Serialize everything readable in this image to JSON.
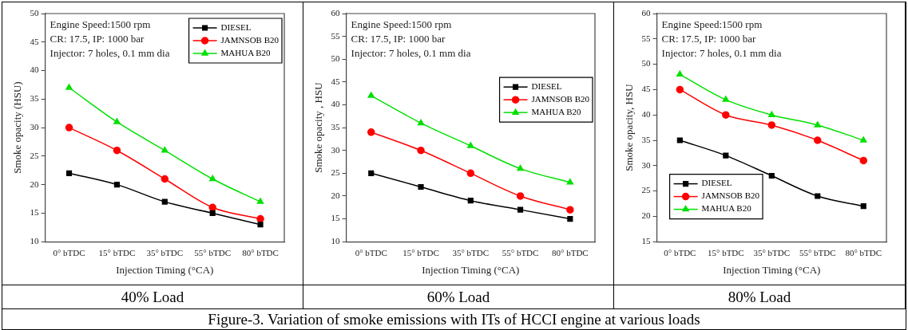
{
  "chart_data": [
    {
      "type": "line",
      "title": "40% Load",
      "xlabel": "Injection Timing (°CA)",
      "ylabel": "Smoke opacity (HSU)",
      "categories": [
        "0° bTDC",
        "15° bTDC",
        "35° bTDC",
        "55° bTDC",
        "80° bTDC"
      ],
      "series": [
        {
          "name": "DIESEL",
          "color": "#000000",
          "marker": "square",
          "values": [
            22,
            20,
            17,
            15,
            13
          ]
        },
        {
          "name": "JAMNSOB B20",
          "color": "#ff0000",
          "marker": "circle",
          "values": [
            30,
            26,
            21,
            16,
            14
          ]
        },
        {
          "name": "MAHUA B20",
          "color": "#00e000",
          "marker": "triangle",
          "values": [
            37,
            31,
            26,
            21,
            17
          ]
        }
      ],
      "ylim": [
        10,
        50
      ],
      "yticks": [
        10,
        15,
        20,
        25,
        30,
        35,
        40,
        45,
        50
      ],
      "grid": false,
      "legend": "top right",
      "annotations": [
        "Engine Speed:1500 rpm",
        "CR: 17.5, IP: 1000 bar",
        "Injector: 7 holes, 0.1 mm dia"
      ]
    },
    {
      "type": "line",
      "title": "60% Load",
      "xlabel": "Injection Timing (°CA)",
      "ylabel": "Smoke opacity , HSU",
      "categories": [
        "0° bTDC",
        "15° bTDC",
        "35° bTDC",
        "55° bTDC",
        "80° bTDC"
      ],
      "series": [
        {
          "name": "DIESEL",
          "color": "#000000",
          "marker": "square",
          "values": [
            25,
            22,
            19,
            17,
            15
          ]
        },
        {
          "name": "JAMNSOB B20",
          "color": "#ff0000",
          "marker": "circle",
          "values": [
            34,
            30,
            25,
            20,
            17
          ]
        },
        {
          "name": "MAHUA B20",
          "color": "#00e000",
          "marker": "triangle",
          "values": [
            42,
            36,
            31,
            26,
            23
          ]
        }
      ],
      "ylim": [
        10,
        60
      ],
      "yticks": [
        10,
        15,
        20,
        25,
        30,
        35,
        40,
        45,
        50,
        55,
        60
      ],
      "grid": false,
      "legend": "right",
      "annotations": [
        "Engine Speed:1500 rpm",
        "CR: 17.5, IP: 1000 bar",
        "Injector: 7 holes, 0.1 mm dia"
      ]
    },
    {
      "type": "line",
      "title": "80% Load",
      "xlabel": "Injection Timing (°CA)",
      "ylabel": "Smoke opacity, HSU",
      "categories": [
        "0° bTDC",
        "15° bTDC",
        "35° bTDC",
        "55° bTDC",
        "80° bTDC"
      ],
      "series": [
        {
          "name": "DIESEL",
          "color": "#000000",
          "marker": "square",
          "values": [
            35,
            32,
            28,
            24,
            22
          ]
        },
        {
          "name": "JAMNSOB B20",
          "color": "#ff0000",
          "marker": "circle",
          "values": [
            45,
            40,
            38,
            35,
            31
          ]
        },
        {
          "name": "MAHUA B20",
          "color": "#00e000",
          "marker": "triangle",
          "values": [
            48,
            43,
            40,
            38,
            35
          ]
        }
      ],
      "ylim": [
        15,
        60
      ],
      "yticks": [
        15,
        20,
        25,
        30,
        35,
        40,
        45,
        50,
        55,
        60
      ],
      "grid": false,
      "legend": "bottom left",
      "annotations": [
        "Engine Speed:1500 rpm",
        "CR: 17.5, IP: 1000 bar",
        "Injector: 7 holes, 0.1 mm dia"
      ]
    },
    {
      "type": "other",
      "title": "Figure-3. Variation of smoke emissions with ITs of HCCI engine at various loads"
    }
  ]
}
